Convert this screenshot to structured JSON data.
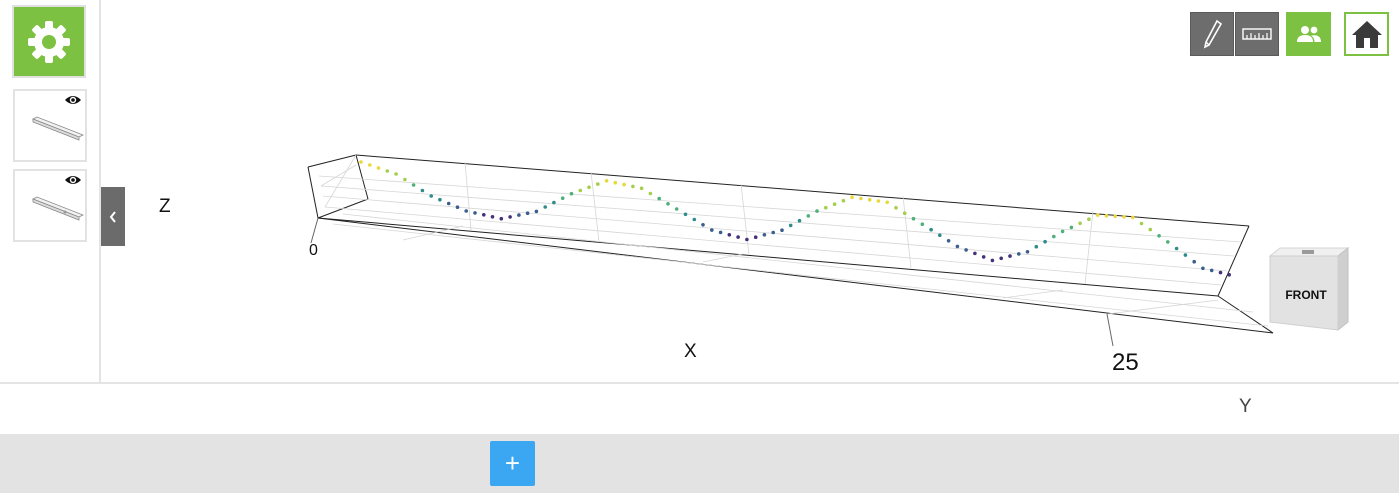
{
  "sidebar": {
    "settings_icon": "gear-icon",
    "thumbnails": [
      {
        "icon": "eye-icon",
        "name": "model-thumbnail-1"
      },
      {
        "icon": "eye-icon",
        "name": "model-thumbnail-2"
      }
    ],
    "collapse_icon": "chevron-left-icon"
  },
  "toolbar": {
    "tools": [
      {
        "icon": "pen-icon"
      },
      {
        "icon": "ruler-icon"
      },
      {
        "icon": "users-icon"
      },
      {
        "icon": "home-icon"
      }
    ]
  },
  "plot": {
    "axis_labels": {
      "z": "Z",
      "x": "X",
      "y": "Y"
    },
    "ticks": {
      "z_origin": "0",
      "x_end": "25"
    }
  },
  "view_cube": {
    "face_label": "FRONT"
  },
  "footer": {
    "add_label": "+"
  },
  "colors": {
    "accent_green": "#7cc142",
    "accent_blue": "#3ba6f2",
    "toolbar_dark": "#6d6d6d"
  },
  "chart_data": {
    "type": "scatter",
    "title": "",
    "xlabel": "X",
    "ylabel": "Y",
    "zlabel": "Z",
    "x_ticks": [
      "25"
    ],
    "z_ticks": [
      "0"
    ],
    "grid": true,
    "legend": "none",
    "series": [
      {
        "values_description": "sinusoidal point trace",
        "points": [
          {
            "x": 0,
            "z": 1.0
          },
          {
            "x": 1,
            "z": 0.6
          },
          {
            "x": 2,
            "z": -0.2
          },
          {
            "x": 3,
            "z": -0.7
          },
          {
            "x": 4,
            "z": -0.9
          },
          {
            "x": 5,
            "z": -0.5
          },
          {
            "x": 6,
            "z": 0.3
          },
          {
            "x": 7,
            "z": 0.9
          },
          {
            "x": 8,
            "z": 0.7
          },
          {
            "x": 9,
            "z": 0.0
          },
          {
            "x": 10,
            "z": -0.7
          },
          {
            "x": 11,
            "z": -0.95
          },
          {
            "x": 12,
            "z": -0.5
          },
          {
            "x": 13,
            "z": 0.3
          },
          {
            "x": 14,
            "z": 0.9
          },
          {
            "x": 15,
            "z": 0.8
          },
          {
            "x": 16,
            "z": 0.1
          },
          {
            "x": 17,
            "z": -0.6
          },
          {
            "x": 18,
            "z": -1.0
          },
          {
            "x": 19,
            "z": -0.6
          },
          {
            "x": 20,
            "z": 0.2
          },
          {
            "x": 21,
            "z": 0.85
          },
          {
            "x": 22,
            "z": 0.85
          },
          {
            "x": 23,
            "z": 0.1
          },
          {
            "x": 24,
            "z": -0.7
          },
          {
            "x": 25,
            "z": -0.9
          }
        ]
      }
    ]
  }
}
